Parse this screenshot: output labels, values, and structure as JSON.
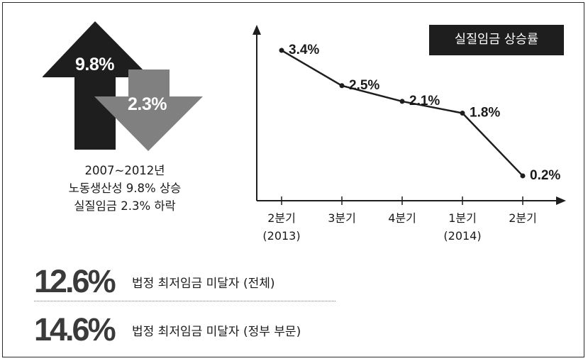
{
  "arrows": {
    "up_value": "9.8%",
    "down_value": "2.3%",
    "up_color": "#1e1e1e",
    "down_color": "#808080"
  },
  "caption": {
    "line1": "2007~2012년",
    "line2": "노동생산성 9.8% 상승",
    "line3": "실질임금 2.3% 하락"
  },
  "chart_data": {
    "type": "line",
    "title": "실질임금 상승률",
    "x_labels": [
      [
        "2분기",
        "(2013)"
      ],
      [
        "3분기",
        ""
      ],
      [
        "4분기",
        ""
      ],
      [
        "1분기",
        "(2014)"
      ],
      [
        "2분기",
        ""
      ]
    ],
    "values": [
      3.4,
      2.5,
      2.1,
      1.8,
      0.2
    ],
    "data_labels": [
      "3.4%",
      "2.5%",
      "2.1%",
      "1.8%",
      "0.2%"
    ],
    "ylim": [
      0,
      3.6
    ],
    "grid": false,
    "line_color": "#1e1e1e",
    "title_bg": "#1e1e1e"
  },
  "stats": [
    {
      "value": "12.6%",
      "label": "법정 최저임금 미달자 (전체)"
    },
    {
      "value": "14.6%",
      "label": "법정 최저임금 미달자 (정부 부문)"
    }
  ]
}
